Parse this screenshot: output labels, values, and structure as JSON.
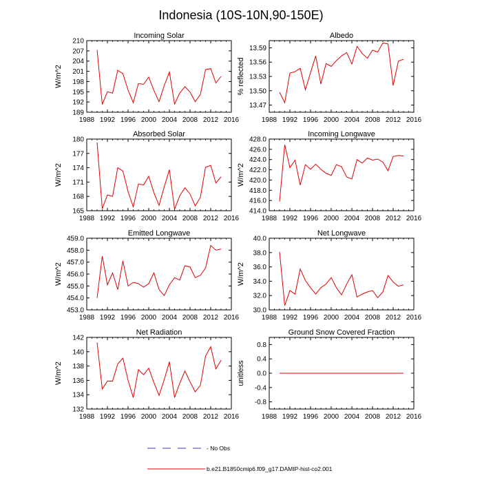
{
  "page": {
    "title": "Indonesia (10S-10N,90-150E)"
  },
  "legend": {
    "obs_label": "- No Obs",
    "model_label": "b.e21.B1850cmip6.f09_g17.DAMIP-hist-co2.001",
    "obs_color": "#3a3ab0",
    "model_color": "#e00000"
  },
  "chart_data": [
    {
      "type": "line",
      "title": "Incoming Solar",
      "ylabel": "W/m^2",
      "xlim": [
        1988,
        2016
      ],
      "xticks": [
        1988,
        1992,
        1996,
        2000,
        2004,
        2008,
        2012,
        2016
      ],
      "ylim": [
        189,
        210
      ],
      "yticks": [
        189,
        192,
        195,
        198,
        201,
        204,
        207,
        210
      ],
      "yticklabels": [
        "189",
        "192",
        "195",
        "198",
        "201",
        "204",
        "207",
        "210"
      ],
      "x": [
        1990,
        1991,
        1992,
        1993,
        1994,
        1995,
        1996,
        1997,
        1998,
        1999,
        2000,
        2001,
        2002,
        2003,
        2004,
        2005,
        2006,
        2007,
        2008,
        2009,
        2010,
        2011,
        2012,
        2013,
        2014
      ],
      "series": [
        {
          "values": [
            207.3,
            191.3,
            195.0,
            194.6,
            201.3,
            200.3,
            195.5,
            191.8,
            197.4,
            197.2,
            199.3,
            195.4,
            192.1,
            196.8,
            200.8,
            191.4,
            194.6,
            196.5,
            194.9,
            192.1,
            194.2,
            201.5,
            201.8,
            197.6,
            199.5
          ]
        }
      ]
    },
    {
      "type": "line",
      "title": "Albedo",
      "ylabel": "% reflected",
      "xlim": [
        1988,
        2016
      ],
      "xticks": [
        1988,
        1992,
        1996,
        2000,
        2004,
        2008,
        2012,
        2016
      ],
      "ylim": [
        13.455,
        13.605
      ],
      "yticks": [
        13.47,
        13.5,
        13.53,
        13.56,
        13.59
      ],
      "yticklabels": [
        "13.47",
        "13.50",
        "13.53",
        "13.56",
        "13.59"
      ],
      "x": [
        1990,
        1991,
        1992,
        1993,
        1994,
        1995,
        1996,
        1997,
        1998,
        1999,
        2000,
        2001,
        2002,
        2003,
        2004,
        2005,
        2006,
        2007,
        2008,
        2009,
        2010,
        2011,
        2012,
        2013,
        2014
      ],
      "series": [
        {
          "values": [
            13.497,
            13.475,
            13.537,
            13.54,
            13.547,
            13.502,
            13.538,
            13.573,
            13.514,
            13.557,
            13.551,
            13.563,
            13.573,
            13.58,
            13.556,
            13.593,
            13.578,
            13.568,
            13.585,
            13.581,
            13.6,
            13.598,
            13.511,
            13.562,
            13.566
          ]
        }
      ]
    },
    {
      "type": "line",
      "title": "Absorbed Solar",
      "ylabel": "W/m^2",
      "xlim": [
        1988,
        2016
      ],
      "xticks": [
        1988,
        1992,
        1996,
        2000,
        2004,
        2008,
        2012,
        2016
      ],
      "ylim": [
        165,
        180
      ],
      "yticks": [
        165,
        168,
        171,
        174,
        177,
        180
      ],
      "yticklabels": [
        "165",
        "168",
        "171",
        "174",
        "177",
        "180"
      ],
      "x": [
        1990,
        1991,
        1992,
        1993,
        1994,
        1995,
        1996,
        1997,
        1998,
        1999,
        2000,
        2001,
        2002,
        2003,
        2004,
        2005,
        2006,
        2007,
        2008,
        2009,
        2010,
        2011,
        2012,
        2013,
        2014
      ],
      "series": [
        {
          "values": [
            179.3,
            165.4,
            168.3,
            168.0,
            174.0,
            173.3,
            169.0,
            165.8,
            170.6,
            170.4,
            172.2,
            168.8,
            166.1,
            170.0,
            173.6,
            165.3,
            168.1,
            169.8,
            168.5,
            166.0,
            167.8,
            174.1,
            174.5,
            170.8,
            172.1
          ]
        }
      ]
    },
    {
      "type": "line",
      "title": "Incoming Longwave",
      "ylabel": "W/m^2",
      "xlim": [
        1988,
        2016
      ],
      "xticks": [
        1988,
        1992,
        1996,
        2000,
        2004,
        2008,
        2012,
        2016
      ],
      "ylim": [
        414,
        428
      ],
      "yticks": [
        414,
        416,
        418,
        420,
        422,
        424,
        426,
        428
      ],
      "yticklabels": [
        "414.0",
        "416.0",
        "418.0",
        "420.0",
        "422.0",
        "424.0",
        "426.0",
        "428.0"
      ],
      "x": [
        1990,
        1991,
        1992,
        1993,
        1994,
        1995,
        1996,
        1997,
        1998,
        1999,
        2000,
        2001,
        2002,
        2003,
        2004,
        2005,
        2006,
        2007,
        2008,
        2009,
        2010,
        2011,
        2012,
        2013,
        2014
      ],
      "series": [
        {
          "values": [
            415.8,
            426.9,
            422.4,
            423.9,
            419.0,
            423.0,
            422.1,
            423.1,
            422.1,
            421.3,
            420.9,
            423.0,
            422.6,
            420.6,
            420.2,
            424.0,
            423.3,
            424.3,
            423.9,
            424.1,
            423.5,
            421.8,
            424.6,
            424.8,
            424.7
          ]
        }
      ]
    },
    {
      "type": "line",
      "title": "Emitted Longwave",
      "ylabel": "W/m^2",
      "xlim": [
        1988,
        2016
      ],
      "xticks": [
        1988,
        1992,
        1996,
        2000,
        2004,
        2008,
        2012,
        2016
      ],
      "ylim": [
        453,
        459
      ],
      "yticks": [
        453,
        454,
        455,
        456,
        457,
        458,
        459
      ],
      "yticklabels": [
        "453.0",
        "454.0",
        "455.0",
        "456.0",
        "457.0",
        "458.0",
        "459.0"
      ],
      "x": [
        1990,
        1991,
        1992,
        1993,
        1994,
        1995,
        1996,
        1997,
        1998,
        1999,
        2000,
        2001,
        2002,
        2003,
        2004,
        2005,
        2006,
        2007,
        2008,
        2009,
        2010,
        2011,
        2012,
        2013,
        2014
      ],
      "series": [
        {
          "values": [
            454.0,
            457.5,
            455.1,
            456.1,
            454.7,
            457.1,
            455.0,
            455.3,
            455.2,
            454.9,
            455.2,
            456.1,
            454.7,
            454.2,
            455.1,
            455.7,
            455.5,
            456.7,
            456.6,
            455.7,
            455.9,
            456.5,
            458.4,
            458.0,
            458.1
          ]
        }
      ]
    },
    {
      "type": "line",
      "title": "Net Longwave",
      "ylabel": "W/m^2",
      "xlim": [
        1988,
        2016
      ],
      "xticks": [
        1988,
        1992,
        1996,
        2000,
        2004,
        2008,
        2012,
        2016
      ],
      "ylim": [
        30,
        40
      ],
      "yticks": [
        30,
        32,
        34,
        36,
        38,
        40
      ],
      "yticklabels": [
        "30.0",
        "32.0",
        "34.0",
        "36.0",
        "38.0",
        "40.0"
      ],
      "x": [
        1990,
        1991,
        1992,
        1993,
        1994,
        1995,
        1996,
        1997,
        1998,
        1999,
        2000,
        2001,
        2002,
        2003,
        2004,
        2005,
        2006,
        2007,
        2008,
        2009,
        2010,
        2011,
        2012,
        2013,
        2014
      ],
      "series": [
        {
          "values": [
            38.1,
            30.6,
            32.7,
            32.2,
            35.7,
            34.1,
            33.1,
            32.2,
            33.1,
            33.6,
            34.5,
            33.1,
            32.1,
            33.6,
            34.9,
            31.8,
            32.2,
            32.5,
            32.7,
            31.7,
            32.5,
            34.8,
            33.9,
            33.3,
            33.5
          ]
        }
      ]
    },
    {
      "type": "line",
      "title": "Net Radiation",
      "ylabel": "W/m^2",
      "xlim": [
        1988,
        2016
      ],
      "xticks": [
        1988,
        1992,
        1996,
        2000,
        2004,
        2008,
        2012,
        2016
      ],
      "ylim": [
        132,
        142
      ],
      "yticks": [
        132,
        134,
        136,
        138,
        140,
        142
      ],
      "yticklabels": [
        "132",
        "134",
        "136",
        "138",
        "140",
        "142"
      ],
      "x": [
        1990,
        1991,
        1992,
        1993,
        1994,
        1995,
        1996,
        1997,
        1998,
        1999,
        2000,
        2001,
        2002,
        2003,
        2004,
        2005,
        2006,
        2007,
        2008,
        2009,
        2010,
        2011,
        2012,
        2013,
        2014
      ],
      "series": [
        {
          "values": [
            141.3,
            134.8,
            135.9,
            135.9,
            138.3,
            139.1,
            136.0,
            133.6,
            137.5,
            136.8,
            137.7,
            135.7,
            133.9,
            136.1,
            138.6,
            133.6,
            135.6,
            137.3,
            135.8,
            134.4,
            135.3,
            139.4,
            140.7,
            137.6,
            138.8
          ]
        }
      ]
    },
    {
      "type": "line",
      "title": "Ground Snow Covered Fraction",
      "ylabel": "unitless",
      "xlim": [
        1988,
        2016
      ],
      "xticks": [
        1988,
        1992,
        1996,
        2000,
        2004,
        2008,
        2012,
        2016
      ],
      "ylim": [
        -1.0,
        1.0
      ],
      "yticks": [
        -0.8,
        -0.4,
        0.0,
        0.4,
        0.8
      ],
      "yticklabels": [
        "-0.8",
        "-0.4",
        "0.0",
        "0.4",
        "0.8"
      ],
      "x": [
        1990,
        1991,
        1992,
        1993,
        1994,
        1995,
        1996,
        1997,
        1998,
        1999,
        2000,
        2001,
        2002,
        2003,
        2004,
        2005,
        2006,
        2007,
        2008,
        2009,
        2010,
        2011,
        2012,
        2013,
        2014
      ],
      "series": [
        {
          "values": [
            0,
            0,
            0,
            0,
            0,
            0,
            0,
            0,
            0,
            0,
            0,
            0,
            0,
            0,
            0,
            0,
            0,
            0,
            0,
            0,
            0,
            0,
            0,
            0,
            0
          ]
        }
      ]
    }
  ]
}
